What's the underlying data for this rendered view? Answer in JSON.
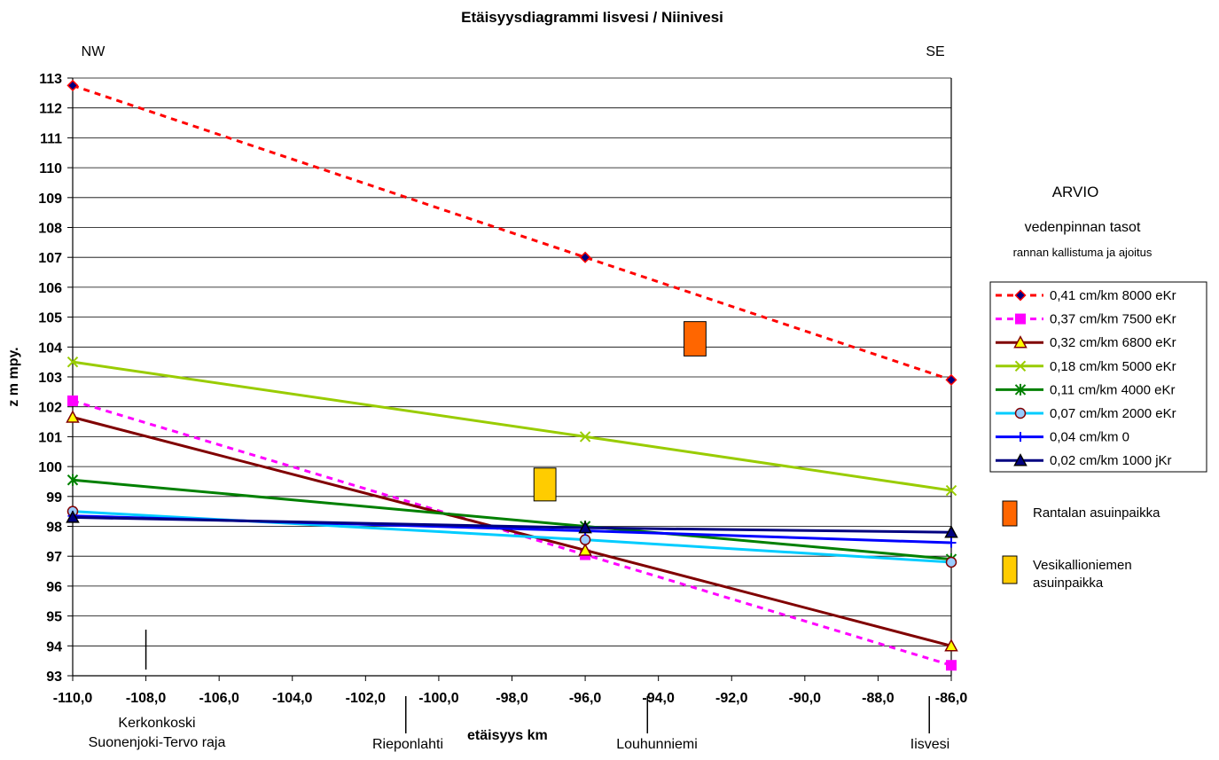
{
  "chart_data": {
    "type": "line",
    "title": "Etäisyysdiagrammi Iisvesi / Niinivesi",
    "xlabel": "etäisyys km",
    "ylabel": "z m mpy.",
    "xlim": [
      -110,
      -86
    ],
    "ylim": [
      93,
      113
    ],
    "x_ticks": [
      "-110,0",
      "-108,0",
      "-106,0",
      "-104,0",
      "-102,0",
      "-100,0",
      "-98,0",
      "-96,0",
      "-94,0",
      "-92,0",
      "-90,0",
      "-88,0",
      "-86,0"
    ],
    "y_ticks": [
      "93",
      "94",
      "95",
      "96",
      "97",
      "98",
      "99",
      "100",
      "101",
      "102",
      "103",
      "104",
      "105",
      "106",
      "107",
      "108",
      "109",
      "110",
      "111",
      "112",
      "113"
    ],
    "grid": "horizontal",
    "direction_labels": {
      "left": "NW",
      "right": "SE"
    },
    "side_title": "ARVIO",
    "side_subtitle": "vedenpinnan tasot",
    "side_note": "rannan kallistuma ja ajoitus",
    "legend_position": "right",
    "series": [
      {
        "name": "0,41 cm/km 8000 eKr",
        "color": "#ff0000",
        "dash": true,
        "marker": "diamond",
        "marker_fill": "#000080",
        "marker_stroke": "#ff0000",
        "x": [
          -110,
          -96,
          -86
        ],
        "y": [
          112.75,
          107.0,
          102.9
        ]
      },
      {
        "name": "0,37 cm/km 7500 eKr",
        "color": "#ff00ff",
        "dash": true,
        "marker": "square",
        "marker_fill": "#ff00ff",
        "marker_stroke": "#ff00ff",
        "x": [
          -110,
          -96,
          -86
        ],
        "y": [
          102.2,
          97.05,
          93.35
        ]
      },
      {
        "name": "0,32 cm/km 6800 eKr",
        "color": "#800000",
        "dash": false,
        "marker": "triangle",
        "marker_fill": "#ffff00",
        "marker_stroke": "#800000",
        "x": [
          -110,
          -96,
          -86
        ],
        "y": [
          101.65,
          97.2,
          94.0
        ]
      },
      {
        "name": "0,18 cm/km 5000 eKr",
        "color": "#99cc00",
        "dash": false,
        "marker": "x",
        "marker_fill": "none",
        "marker_stroke": "#99cc00",
        "x": [
          -110,
          -96,
          -86
        ],
        "y": [
          103.5,
          101.0,
          99.2
        ]
      },
      {
        "name": "0,11 cm/km 4000 eKr",
        "color": "#008000",
        "dash": false,
        "marker": "star",
        "marker_fill": "none",
        "marker_stroke": "#008000",
        "x": [
          -110,
          -96,
          -86
        ],
        "y": [
          99.55,
          98.0,
          96.9
        ]
      },
      {
        "name": "0,07 cm/km 2000 eKr",
        "color": "#00ccff",
        "dash": false,
        "marker": "circle",
        "marker_fill": "#99ccff",
        "marker_stroke": "#800000",
        "x": [
          -110,
          -96,
          -86
        ],
        "y": [
          98.5,
          97.55,
          96.8
        ]
      },
      {
        "name": "0,04 cm/km 0",
        "color": "#0000ff",
        "dash": false,
        "marker": "plus",
        "marker_fill": "none",
        "marker_stroke": "#0000ff",
        "x": [
          -110,
          -96,
          -86
        ],
        "y": [
          98.35,
          97.85,
          97.45
        ]
      },
      {
        "name": "0,02 cm/km 1000 jKr",
        "color": "#000080",
        "dash": false,
        "marker": "triangle",
        "marker_fill": "#000080",
        "marker_stroke": "#000000",
        "x": [
          -110,
          -96,
          -86
        ],
        "y": [
          98.3,
          97.95,
          97.8
        ]
      }
    ],
    "sites": [
      {
        "name": "Rantalan asuinpaikka",
        "color": "#ff6600",
        "x": [
          -93.3,
          -92.7
        ],
        "y": [
          103.7,
          104.85
        ]
      },
      {
        "name": "Vesikallioniemen asuinpaikka",
        "name_lines": [
          "Vesikallioniemen",
          " asuinpaikka"
        ],
        "color": "#ffcc00",
        "x": [
          -97.4,
          -96.8
        ],
        "y": [
          98.85,
          99.95
        ]
      }
    ],
    "places": [
      {
        "lines": [
          "Kerkonkoski",
          "Suonenjoki-Tervo raja"
        ],
        "x": -108
      },
      {
        "lines": [
          "Rieponlahti"
        ],
        "x": -100.9
      },
      {
        "lines": [
          "Louhunniemi"
        ],
        "x": -94.3
      },
      {
        "lines": [
          "Iisvesi"
        ],
        "x": -86.6
      }
    ]
  }
}
